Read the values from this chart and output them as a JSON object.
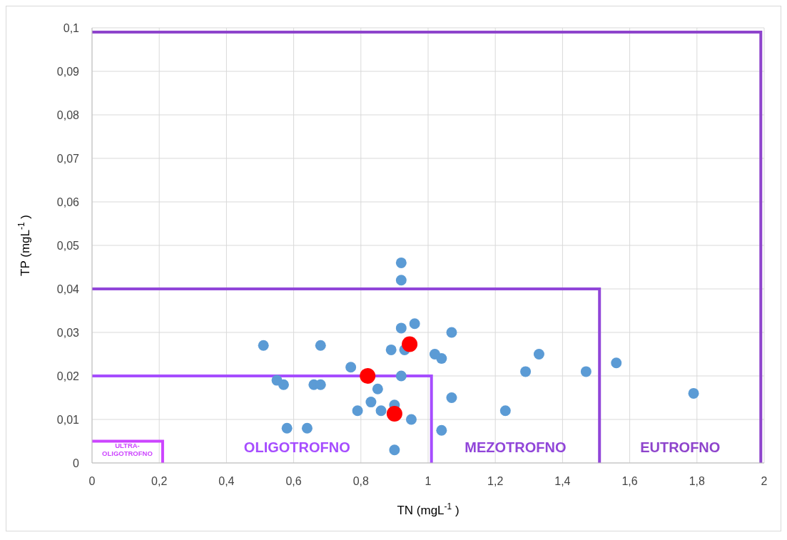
{
  "chart_data": {
    "type": "scatter",
    "xlabel": "TN (mgL$^{-1}$)",
    "ylabel": "TP (mgL$^{-1}$)",
    "xlim": [
      0,
      2
    ],
    "xticks": [
      0,
      {
        "value": 0.2,
        "label": "0,2"
      },
      {
        "value": 0.4,
        "label": "0,4"
      },
      {
        "value": 0.6,
        "label": "0,6"
      },
      {
        "value": 0.8,
        "label": "0,8"
      },
      1,
      {
        "value": 1.2,
        "label": "1,2"
      },
      {
        "value": 1.4,
        "label": "1,4"
      },
      {
        "value": 1.6,
        "label": "1,6"
      },
      {
        "value": 1.8,
        "label": "1,8"
      },
      2
    ],
    "ylim": [
      0,
      0.1
    ],
    "yticks": [
      0,
      {
        "value": 0.01,
        "label": "0,01"
      },
      {
        "value": 0.02,
        "label": "0,02"
      },
      {
        "value": 0.03,
        "label": "0,03"
      },
      {
        "value": 0.04,
        "label": "0,04"
      },
      {
        "value": 0.05,
        "label": "0,05"
      },
      {
        "value": 0.06,
        "label": "0,06"
      },
      {
        "value": 0.07,
        "label": "0,07"
      },
      {
        "value": 0.08,
        "label": "0,08"
      },
      {
        "value": 0.09,
        "label": "0,09"
      },
      {
        "value": 0.1,
        "label": "0,1"
      }
    ],
    "grid": true,
    "marker": "circle",
    "series": [
      {
        "color": "#5b9bd5",
        "x": [
          0.92,
          0.92,
          0.92,
          0.96,
          1.07,
          0.89,
          0.93,
          1.02,
          1.04,
          0.51,
          0.68,
          0.77,
          0.92,
          0.55,
          0.57,
          0.66,
          0.68,
          0.85,
          0.83,
          0.79,
          0.86,
          0.9,
          0.95,
          0.58,
          0.64,
          0.9,
          1.07,
          1.04,
          1.23,
          1.29,
          1.33,
          1.47,
          1.56,
          1.79
        ],
        "values": [
          0.046,
          0.042,
          0.031,
          0.032,
          0.03,
          0.026,
          0.026,
          0.025,
          0.024,
          0.027,
          0.027,
          0.022,
          0.02,
          0.019,
          0.018,
          0.018,
          0.018,
          0.017,
          0.014,
          0.012,
          0.012,
          0.0133,
          0.01,
          0.008,
          0.008,
          0.003,
          0.015,
          0.0075,
          0.012,
          0.021,
          0.025,
          0.021,
          0.023,
          0.016
        ]
      },
      {
        "color": "#ff0000",
        "x": [
          0.945,
          0.82,
          0.9
        ],
        "values": [
          0.0273,
          0.02,
          0.0113
        ]
      },
      {
        "type": "line",
        "color": "#cc44ff",
        "marker": "none",
        "x": [
          0,
          0.21,
          0.21
        ],
        "values": [
          0.005,
          0.005,
          0
        ]
      },
      {
        "type": "line",
        "color": "#a64dff",
        "marker": "none",
        "x": [
          0,
          1.01,
          1.01
        ],
        "values": [
          0.02,
          0.02,
          0
        ]
      },
      {
        "type": "line",
        "color": "#9146d9",
        "marker": "none",
        "x": [
          0,
          1.51,
          1.51
        ],
        "values": [
          0.04,
          0.04,
          0
        ]
      },
      {
        "type": "line",
        "color": "#8e44cc",
        "marker": "none",
        "x": [
          0,
          1.99,
          1.99
        ],
        "values": [
          0.099,
          0.099,
          0
        ]
      }
    ],
    "annotations": [
      "ULTRA-\nOLIGOTROFNO",
      "OLIGOTROFNO",
      "MEZOTROFNO",
      "EUTROFNO"
    ]
  }
}
